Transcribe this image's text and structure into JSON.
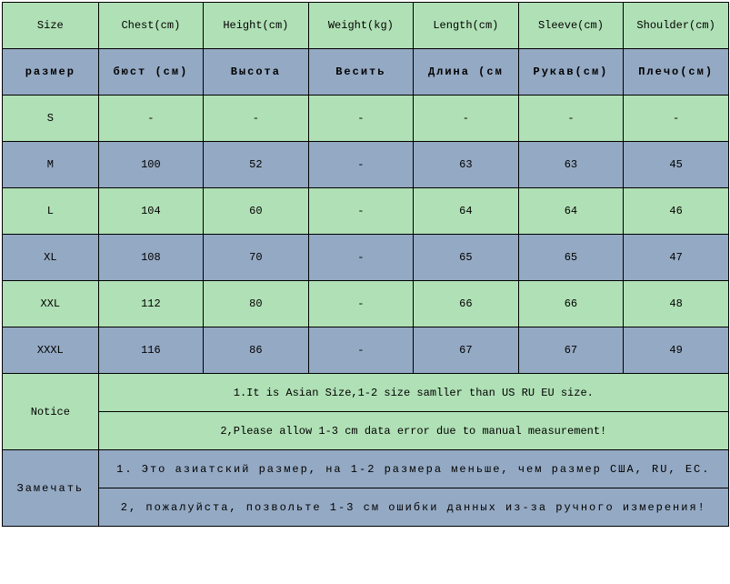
{
  "colors": {
    "green": "#b0e0b5",
    "blue": "#94a9c3",
    "border": "#000000",
    "text": "#000000"
  },
  "headers": {
    "size": "Size",
    "chest": "Chest(cm)",
    "height": "Height(cm)",
    "weight": "Weight(kg)",
    "length": "Length(cm)",
    "sleeve": "Sleeve(cm)",
    "shoulder": "Shoulder(cm)"
  },
  "ru_headers": {
    "size": "размер",
    "chest": "бюст (см)",
    "height": "Высота",
    "weight": "Весить",
    "length": "Длина (см",
    "sleeve": "Рукав(см)",
    "shoulder": "Плечо(см)"
  },
  "rows": {
    "s": {
      "size": "S",
      "chest": "-",
      "height": "-",
      "weight": "-",
      "length": "-",
      "sleeve": "-",
      "shoulder": "-"
    },
    "m": {
      "size": "M",
      "chest": "100",
      "height": "52",
      "weight": "-",
      "length": "63",
      "sleeve": "63",
      "shoulder": "45"
    },
    "l": {
      "size": "L",
      "chest": "104",
      "height": "60",
      "weight": "-",
      "length": "64",
      "sleeve": "64",
      "shoulder": "46"
    },
    "xl": {
      "size": "XL",
      "chest": "108",
      "height": "70",
      "weight": "-",
      "length": "65",
      "sleeve": "65",
      "shoulder": "47"
    },
    "xxl": {
      "size": "XXL",
      "chest": "112",
      "height": "80",
      "weight": "-",
      "length": "66",
      "sleeve": "66",
      "shoulder": "48"
    },
    "xxxl": {
      "size": "XXXL",
      "chest": "116",
      "height": "86",
      "weight": "-",
      "length": "67",
      "sleeve": "67",
      "shoulder": "49"
    }
  },
  "notice": {
    "label": "Notice",
    "line1": "1.It is Asian Size,1-2 size samller than US RU EU size.",
    "line2": "2,Please allow 1-3 cm data error due to manual measurement!"
  },
  "ru_notice": {
    "label": "Замечать",
    "line1": "1. Это азиатский размер, на 1-2 размера меньше, чем размер США, RU, ЕС.",
    "line2": "2, пожалуйста, позвольте 1-3 см ошибки данных из-за ручного измерения!"
  }
}
